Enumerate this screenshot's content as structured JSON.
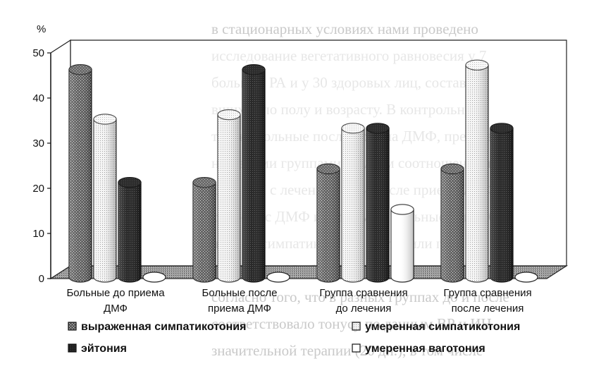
{
  "chart_data": {
    "type": "bar",
    "unit": "%",
    "ylim": [
      0,
      50
    ],
    "yticks": [
      "0",
      "10",
      "20",
      "30",
      "40",
      "50"
    ],
    "categories": [
      [
        "Больные до приема",
        "ДМФ"
      ],
      [
        "Больные после",
        "приема ДМФ"
      ],
      [
        "Группа сравнения",
        "до лечения"
      ],
      [
        "Группа сравнения",
        "после лечения"
      ]
    ],
    "series": [
      {
        "name": "выраженная  симпатикотония",
        "values": [
          46,
          21,
          24,
          24
        ]
      },
      {
        "name": "умеренная  симпатикотония",
        "values": [
          35,
          36,
          33,
          47
        ]
      },
      {
        "name": "эйтония",
        "values": [
          21,
          46,
          33,
          33
        ]
      },
      {
        "name": "умеренная  ваготония",
        "values": [
          0,
          0,
          15,
          0
        ]
      }
    ],
    "legend": "bottom",
    "grid": false
  },
  "background_text": [
    "в стационарных условиях нами проведено",
    "исследование вегетативного равновесия у 7",
    "больных РА и у 30 здоровых лиц, составля",
    "вшихся по полу и возрасту. В контрольной",
    "так же больные после приема ДМФ, предста",
    "ни своими группами по двум соотношениям",
    "ВР и ИН с лечением до и после приема ДМФ",
    "ственно с ДМФ и без ДМФ. Больные с преоб",
    "данием симпатикотонии составили группу",
    "занятых ДМФ: более того, после приема ДМ",
    "согласно того, что в разных группах до и после",
    "соответствовало тонусу по данным ВР и ИН",
    "значительной терапии (20 дн.), в том числе"
  ]
}
